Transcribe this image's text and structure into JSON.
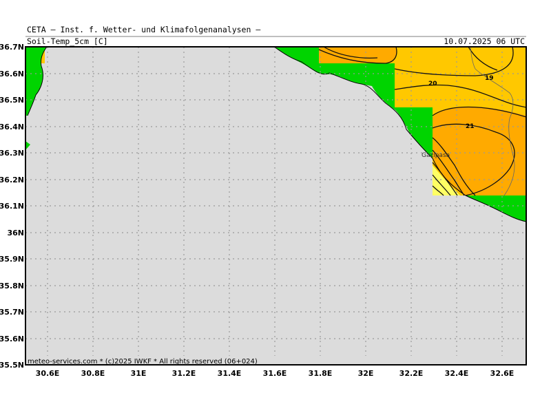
{
  "header": {
    "model_line": "CETA — Inst. f. Wetter- und Klimafolgenanalysen —",
    "parameter": "Soil-Temp_5cm [C]",
    "valid_time": "10.07.2025 06 UTC"
  },
  "footer": {
    "copyright": "meteo-services.com * (c)2025 IWKF * All rights reserved (06+024)"
  },
  "axes": {
    "lat_ticks": [
      "36.7N",
      "36.6N",
      "36.5N",
      "36.4N",
      "36.3N",
      "36.2N",
      "36.1N",
      "36N",
      "35.9N",
      "35.8N",
      "35.7N",
      "35.6N",
      "35.5N"
    ],
    "lon_ticks": [
      "30.6E",
      "30.8E",
      "31E",
      "31.2E",
      "31.4E",
      "31.6E",
      "31.8E",
      "32E",
      "32.2E",
      "32.4E",
      "32.6E"
    ]
  },
  "contours": {
    "labels": [
      "19",
      "20",
      "21"
    ]
  },
  "places": [
    "Gazipasa"
  ],
  "colors": {
    "sea": "#dcdcdc",
    "land": "#00d400",
    "temp_19": "#ffc800",
    "temp_21": "#ffaa00",
    "temp_cool": "#ffff64",
    "grid": "#999999"
  }
}
